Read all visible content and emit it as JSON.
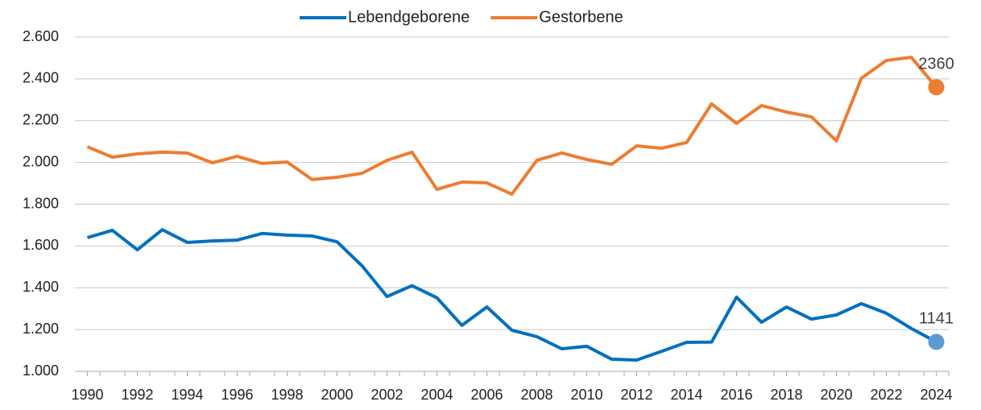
{
  "chart_data": {
    "type": "line",
    "x": [
      1990,
      1991,
      1992,
      1993,
      1994,
      1995,
      1996,
      1997,
      1998,
      1999,
      2000,
      2001,
      2002,
      2003,
      2004,
      2005,
      2006,
      2007,
      2008,
      2009,
      2010,
      2011,
      2012,
      2013,
      2014,
      2015,
      2016,
      2017,
      2018,
      2019,
      2020,
      2021,
      2022,
      2023,
      2024
    ],
    "series": [
      {
        "name": "Lebendgeborene",
        "color": "#0070c0",
        "marker_color": "#5b9bd5",
        "values": [
          1640,
          1675,
          1582,
          1678,
          1617,
          1624,
          1628,
          1660,
          1652,
          1648,
          1620,
          1505,
          1358,
          1410,
          1352,
          1220,
          1308,
          1197,
          1166,
          1108,
          1120,
          1058,
          1054,
          1096,
          1139,
          1140,
          1355,
          1235,
          1308,
          1250,
          1270,
          1324,
          1278,
          1205,
          1141
        ]
      },
      {
        "name": "Gestorbene",
        "color": "#ed7d31",
        "marker_color": "#ed7d31",
        "values": [
          2075,
          2025,
          2041,
          2049,
          2045,
          1998,
          2029,
          1995,
          2002,
          1918,
          1929,
          1948,
          2010,
          2049,
          1871,
          1906,
          1902,
          1848,
          2010,
          2045,
          2014,
          1991,
          2079,
          2068,
          2095,
          2280,
          2187,
          2272,
          2241,
          2218,
          2103,
          2403,
          2488,
          2503,
          2360
        ]
      }
    ],
    "xlim": [
      1989.5,
      2024.5
    ],
    "xticks": [
      1990,
      1992,
      1994,
      1996,
      1998,
      2000,
      2002,
      2004,
      2006,
      2008,
      2010,
      2012,
      2014,
      2016,
      2018,
      2020,
      2022,
      2024
    ],
    "ylim": [
      1000,
      2600
    ],
    "yticks": [
      {
        "value": 1000,
        "label": "1.000"
      },
      {
        "value": 1200,
        "label": "1.200"
      },
      {
        "value": 1400,
        "label": "1.400"
      },
      {
        "value": 1600,
        "label": "1.600"
      },
      {
        "value": 1800,
        "label": "1.800"
      },
      {
        "value": 2000,
        "label": "2.000"
      },
      {
        "value": 2200,
        "label": "2.200"
      },
      {
        "value": 2400,
        "label": "2.400"
      },
      {
        "value": 2600,
        "label": "2.600"
      }
    ],
    "grid": true,
    "legend": "top",
    "label_last": true
  }
}
